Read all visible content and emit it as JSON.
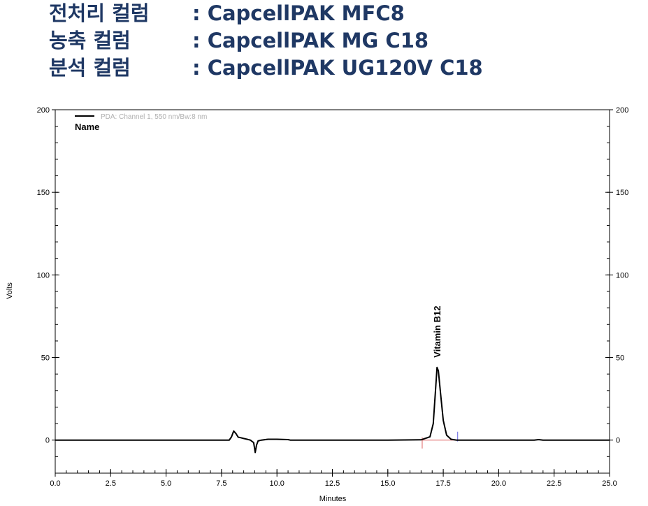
{
  "header": {
    "lines": [
      {
        "label": "전처리 컬럼",
        "value": ": CapcellPAK MFC8"
      },
      {
        "label": "농축 컬럼",
        "value": ": CapcellPAK MG C18"
      },
      {
        "label": "분석 컬럼",
        "value": ": CapcellPAK UG120V C18"
      }
    ]
  },
  "chart_data": {
    "type": "line",
    "xlabel": "Minutes",
    "ylabel": "Volts",
    "xlim": [
      0,
      25
    ],
    "ylim": [
      -20,
      200
    ],
    "x_ticks": [
      "0.0",
      "2.5",
      "5.0",
      "7.5",
      "10.0",
      "12.5",
      "15.0",
      "17.5",
      "20.0",
      "22.5",
      "25.0"
    ],
    "y_ticks": [
      "0",
      "50",
      "100",
      "150",
      "200"
    ],
    "y_ticks_right": [
      "0",
      "50",
      "100",
      "150",
      "200"
    ],
    "legend": {
      "series": "PDA: Channel 1, 550 nm/Bw:8 nm",
      "header": "Name",
      "placement": "top-left"
    },
    "line_color": "#000000",
    "baseline_color": "#e06060",
    "peak_marker_color": "#6060e0",
    "peak_label": "Vitamin B12",
    "peak": {
      "retention_time": 17.25,
      "height": 44
    },
    "baseline_segment": {
      "x_start": 16.55,
      "x_end": 18.15
    },
    "series": [
      {
        "name": "PDA: Channel 1, 550 nm/Bw:8 nm",
        "x": [
          0,
          7.85,
          7.95,
          8.05,
          8.15,
          8.25,
          8.35,
          8.5,
          8.65,
          8.8,
          8.95,
          9.02,
          9.08,
          9.15,
          9.3,
          9.6,
          10.0,
          10.5,
          10.6,
          11.0,
          15.0,
          16.5,
          16.9,
          17.05,
          17.15,
          17.22,
          17.28,
          17.38,
          17.5,
          17.65,
          17.85,
          18.1,
          21.6,
          21.8,
          22.0,
          25.0
        ],
        "y": [
          0,
          0,
          2,
          5.5,
          4,
          1.8,
          1.5,
          1,
          0.5,
          0,
          -1.5,
          -7.5,
          -3,
          -0.5,
          0,
          0.5,
          0.5,
          0.3,
          0,
          0,
          0,
          0.2,
          2,
          10,
          30,
          44,
          42,
          28,
          12,
          3,
          0.5,
          0,
          0,
          0.3,
          0,
          0
        ]
      }
    ]
  }
}
